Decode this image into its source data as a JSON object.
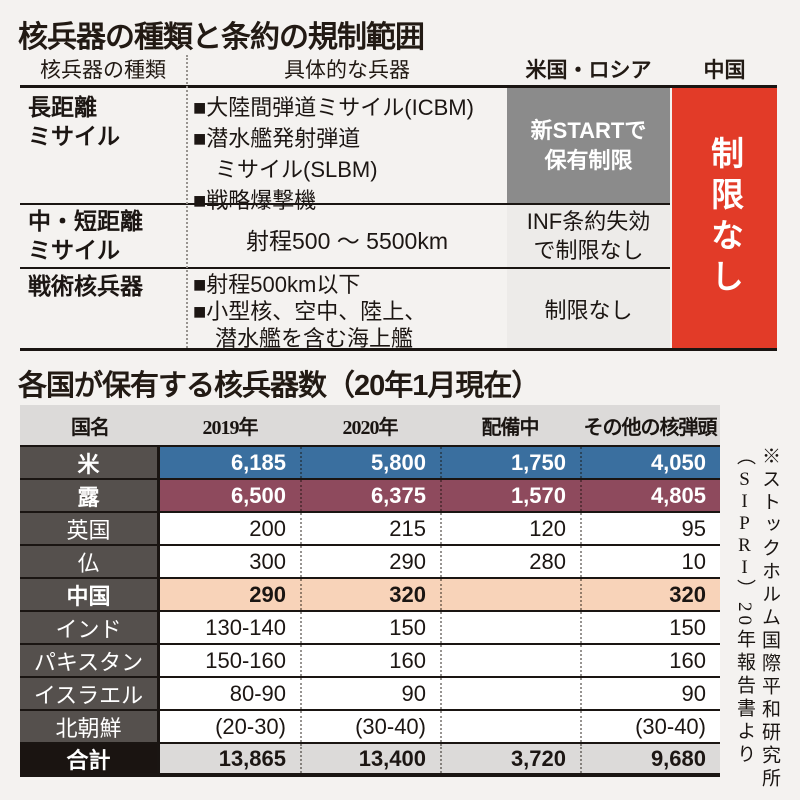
{
  "colors": {
    "background": "#f4f2f0",
    "no_limit_red": "#e23b28",
    "new_start_gray": "#8b8b8b",
    "light_cell_gray": "#edebe9",
    "us_row_blue": "#3a6f9f",
    "russia_row_maroon": "#8e4a5d",
    "china_row_peach": "#f8d3b9",
    "country_col_gray": "#55504d",
    "header_row_gray": "#dcdad9",
    "total_row_black": "#1a1411"
  },
  "section1": {
    "title": "核兵器の種類と条約の規制範囲",
    "headers": {
      "types": "核兵器の種類",
      "weapons": "具体的な兵器",
      "us_russia": "米国・ロシア",
      "china": "中国"
    },
    "rows": [
      {
        "label": [
          "長距離",
          "ミサイル"
        ],
        "items": [
          "■大陸間弾道ミサイル(ICBM)",
          "■潜水艦発射弾道",
          "ミサイル(SLBM)",
          "■戦略爆撃機"
        ],
        "us_russia": [
          "新STARTで",
          "保有制限"
        ]
      },
      {
        "label": [
          "中・短距離",
          "ミサイル"
        ],
        "range": "射程500 ～ 5500km",
        "us_russia": [
          "INF条約失効",
          "で制限なし"
        ]
      },
      {
        "label": [
          "戦術核兵器"
        ],
        "items": [
          "■射程500km以下",
          "■小型核、空中、陸上、",
          "潜水艦を含む海上艦"
        ],
        "us_russia": [
          "制限なし"
        ]
      }
    ],
    "china_cell": "制限なし"
  },
  "section2": {
    "title": "各国が保有する核兵器数（20年1月現在）",
    "headers": [
      "国名",
      "2019年",
      "2020年",
      "配備中",
      "その他の核弾頭"
    ],
    "rows": [
      {
        "country": "米",
        "y2019": "6,185",
        "y2020": "5,800",
        "deployed": "1,750",
        "other": "4,050"
      },
      {
        "country": "露",
        "y2019": "6,500",
        "y2020": "6,375",
        "deployed": "1,570",
        "other": "4,805"
      },
      {
        "country": "英国",
        "y2019": "200",
        "y2020": "215",
        "deployed": "120",
        "other": "95"
      },
      {
        "country": "仏",
        "y2019": "300",
        "y2020": "290",
        "deployed": "280",
        "other": "10"
      },
      {
        "country": "中国",
        "y2019": "290",
        "y2020": "320",
        "deployed": "",
        "other": "320"
      },
      {
        "country": "インド",
        "y2019": "130-140",
        "y2020": "150",
        "deployed": "",
        "other": "150"
      },
      {
        "country": "パキスタン",
        "y2019": "150-160",
        "y2020": "160",
        "deployed": "",
        "other": "160"
      },
      {
        "country": "イスラエル",
        "y2019": "80-90",
        "y2020": "90",
        "deployed": "",
        "other": "90"
      },
      {
        "country": "北朝鮮",
        "y2019": "(20-30)",
        "y2020": "(30-40)",
        "deployed": "",
        "other": "(30-40)"
      },
      {
        "country": "合計",
        "y2019": "13,865",
        "y2020": "13,400",
        "deployed": "3,720",
        "other": "9,680"
      }
    ],
    "source": {
      "part1": "※ストックホルム国際平和研究所（",
      "sipri": "SIPRI",
      "part2": "）20年報告書より"
    }
  },
  "chart_data": [
    {
      "type": "table",
      "title": "核兵器の種類と条約の規制範囲",
      "columns": [
        "核兵器の種類",
        "具体的な兵器",
        "米国・ロシア",
        "中国"
      ],
      "rows": [
        [
          "長距離ミサイル",
          "大陸間弾道ミサイル(ICBM)／潜水艦発射弾道ミサイル(SLBM)／戦略爆撃機",
          "新STARTで保有制限",
          "制限なし"
        ],
        [
          "中・短距離ミサイル",
          "射程500～5500km",
          "INF条約失効で制限なし",
          "制限なし"
        ],
        [
          "戦術核兵器",
          "射程500km以下／小型核、空中、陸上、潜水艦を含む海上艦",
          "制限なし",
          "制限なし"
        ]
      ]
    },
    {
      "type": "table",
      "title": "各国が保有する核兵器数（20年1月現在）",
      "columns": [
        "国名",
        "2019年",
        "2020年",
        "配備中",
        "その他の核弾頭"
      ],
      "rows": [
        [
          "米",
          6185,
          5800,
          1750,
          4050
        ],
        [
          "露",
          6500,
          6375,
          1570,
          4805
        ],
        [
          "英国",
          200,
          215,
          120,
          95
        ],
        [
          "仏",
          300,
          290,
          280,
          10
        ],
        [
          "中国",
          290,
          320,
          null,
          320
        ],
        [
          "インド",
          "130-140",
          150,
          null,
          150
        ],
        [
          "パキスタン",
          "150-160",
          160,
          null,
          160
        ],
        [
          "イスラエル",
          "80-90",
          90,
          null,
          90
        ],
        [
          "北朝鮮",
          "(20-30)",
          "(30-40)",
          null,
          "(30-40)"
        ],
        [
          "合計",
          13865,
          13400,
          3720,
          9680
        ]
      ],
      "source": "※ストックホルム国際平和研究所（SIPRI）20年報告書より"
    }
  ]
}
